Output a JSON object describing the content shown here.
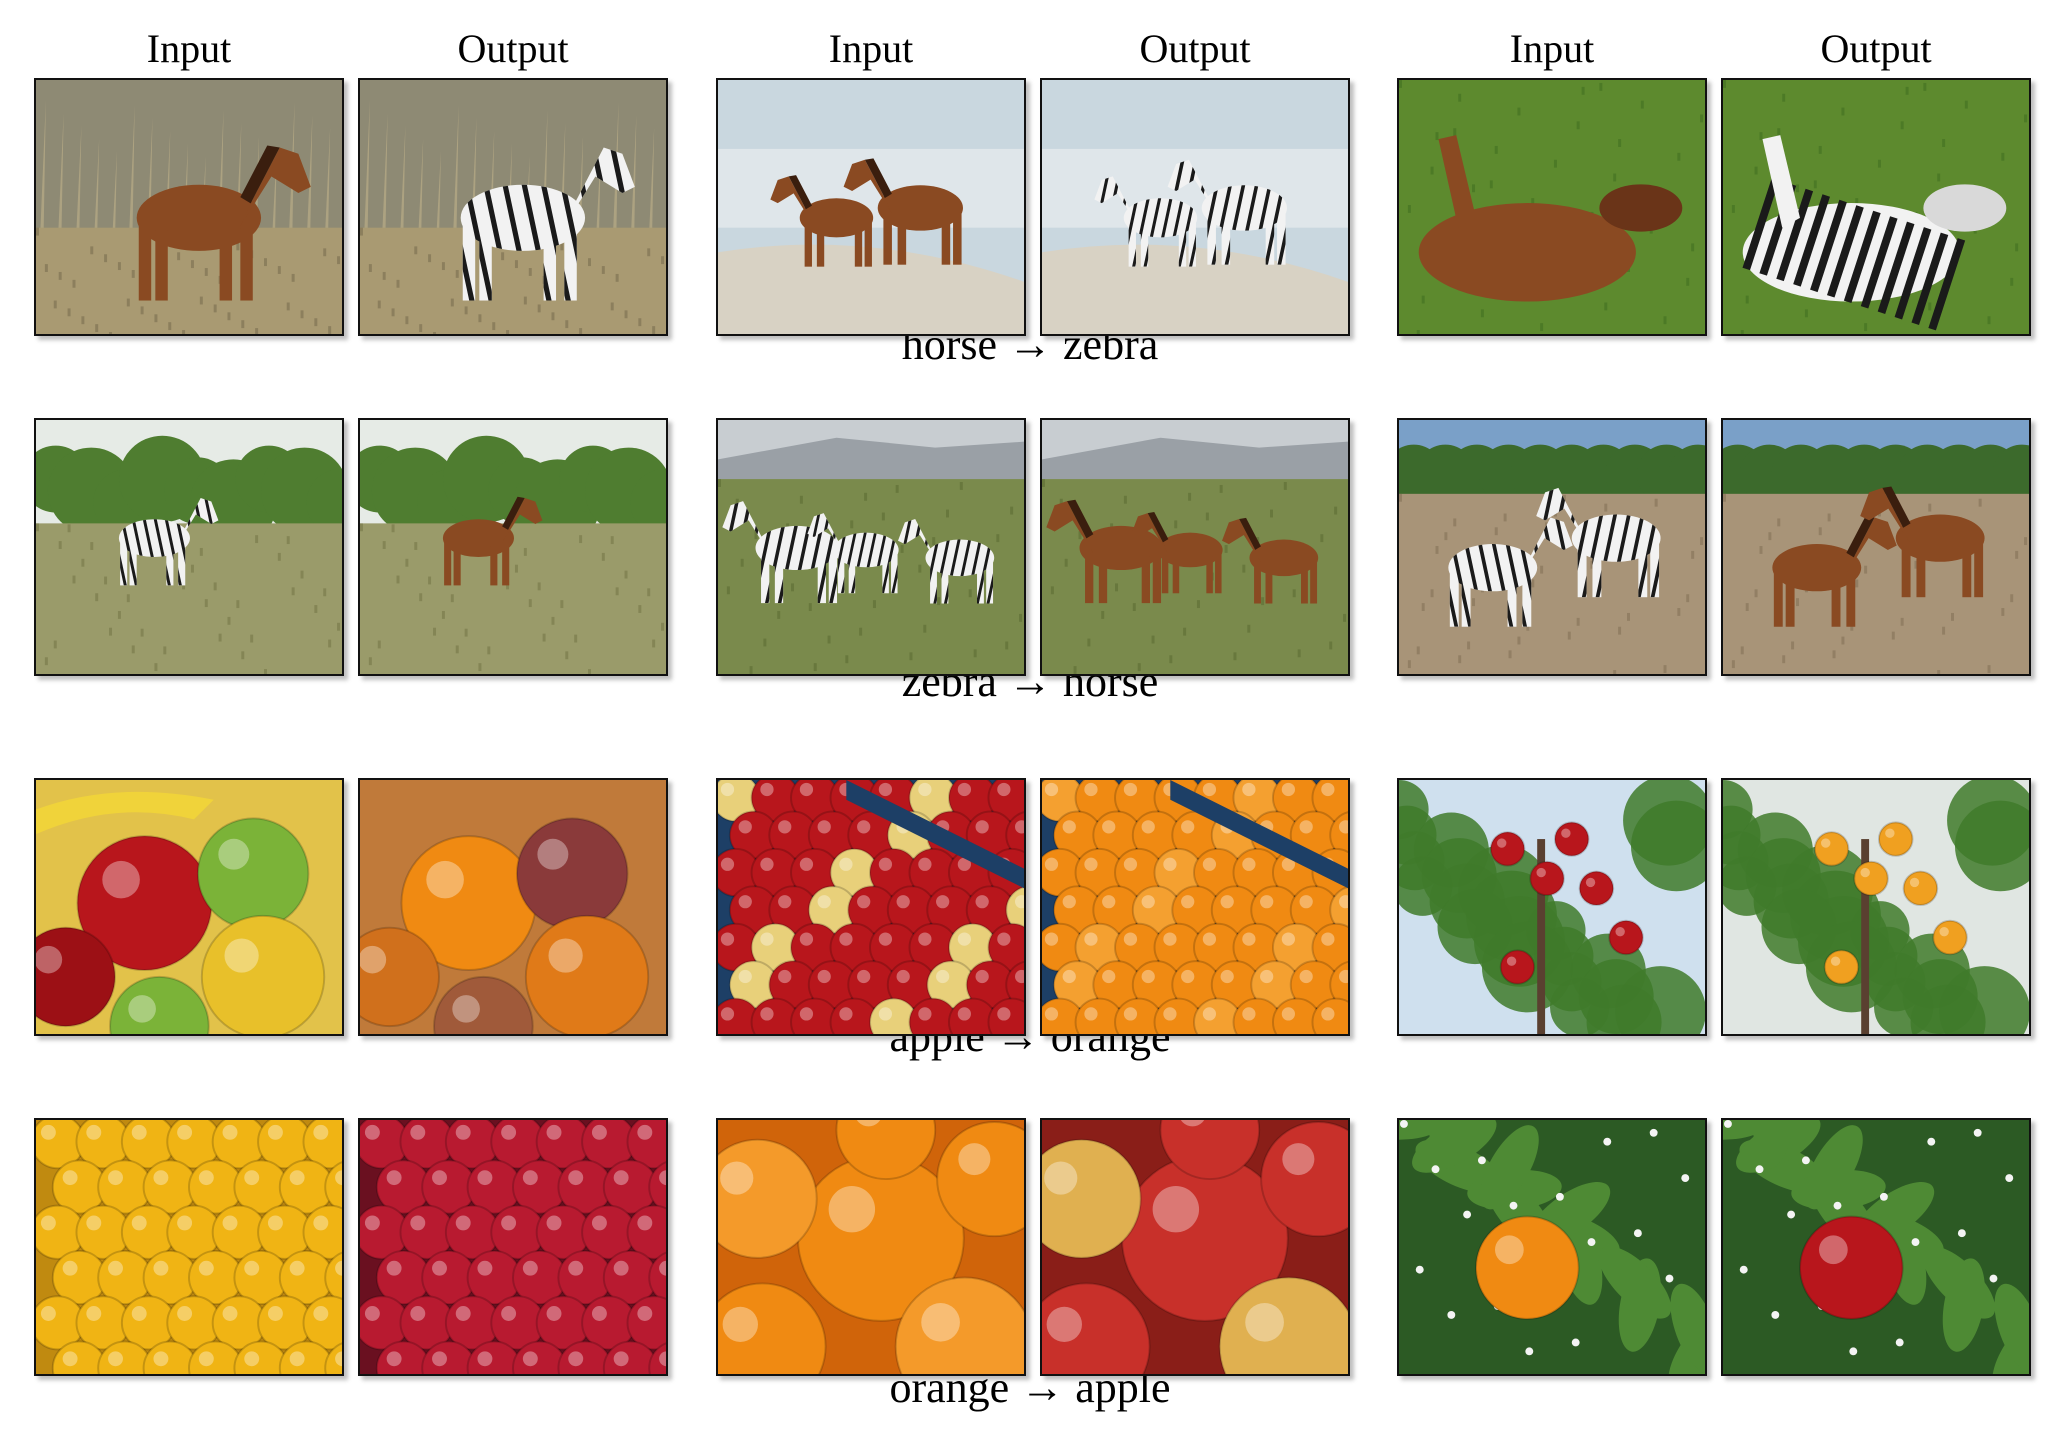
{
  "figure": {
    "column_headers": [
      "Input",
      "Output",
      "Input",
      "Output",
      "Input",
      "Output"
    ],
    "row_captions": [
      "horse → zebra",
      "zebra → horse",
      "apple → orange",
      "orange → apple"
    ],
    "rows": [
      {
        "panels": [
          {
            "scene": "horse-grass",
            "content": "brown horse in dry grass"
          },
          {
            "scene": "zebra-grass",
            "content": "zebra in dry grass"
          },
          {
            "scene": "horse-beach",
            "content": "two horses on a beach"
          },
          {
            "scene": "zebra-beach",
            "content": "two zebras on a beach"
          },
          {
            "scene": "horse-rolling",
            "content": "brown horse rolling on lawn"
          },
          {
            "scene": "zebra-rolling",
            "content": "zebra rolling on lawn"
          }
        ]
      },
      {
        "panels": [
          {
            "scene": "zebra-savanna",
            "content": "zebra in savanna"
          },
          {
            "scene": "horse-savanna",
            "content": "horse in savanna"
          },
          {
            "scene": "zebras-herd",
            "content": "three zebras in field"
          },
          {
            "scene": "horses-herd",
            "content": "three horses in field"
          },
          {
            "scene": "zebras-fighting",
            "content": "two zebras fighting"
          },
          {
            "scene": "horses-fighting",
            "content": "two horses fighting"
          }
        ]
      },
      {
        "panels": [
          {
            "scene": "apples-bowl",
            "content": "red and green apples with bananas"
          },
          {
            "scene": "oranges-bowl",
            "content": "oranges"
          },
          {
            "scene": "apples-crate",
            "content": "crate of red apples"
          },
          {
            "scene": "oranges-crate",
            "content": "crate of oranges"
          },
          {
            "scene": "apple-tree",
            "content": "apple tree with red apples"
          },
          {
            "scene": "orange-tree",
            "content": "tree with orange fruit"
          }
        ]
      },
      {
        "panels": [
          {
            "scene": "oranges-pile",
            "content": "pile of oranges"
          },
          {
            "scene": "apples-pile",
            "content": "pile of red apples"
          },
          {
            "scene": "oranges-closeup",
            "content": "close-up of oranges"
          },
          {
            "scene": "apples-closeup",
            "content": "close-up of apples"
          },
          {
            "scene": "orange-branch",
            "content": "orange on a branch with blossoms"
          },
          {
            "scene": "apple-branch",
            "content": "red apple on a branch with blossoms"
          }
        ]
      }
    ],
    "colors": {
      "grass_dry": "#a99a72",
      "grass_green": "#5d8a2e",
      "sand": "#d8d2c4",
      "sea": "#c9d7df",
      "horse_brown": "#8a4a22",
      "zebra_white": "#f2f2f2",
      "zebra_black": "#1a1a1a",
      "apple_red": "#b8161c",
      "apple_green": "#7bb338",
      "orange": "#f08a12",
      "leaf": "#3f7a2a",
      "crate_blue": "#1d3f66"
    }
  }
}
